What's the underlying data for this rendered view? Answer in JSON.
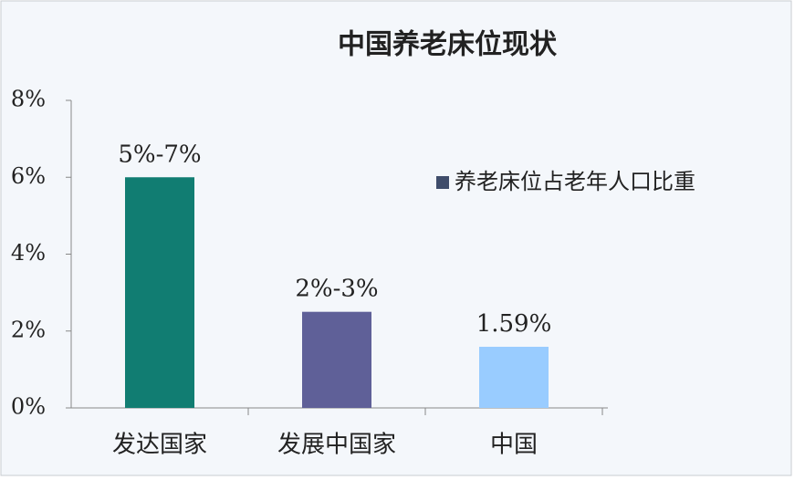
{
  "chart_data": {
    "type": "bar",
    "title": "中国养老床位现状",
    "categories": [
      "发达国家",
      "发展中国家",
      "中国"
    ],
    "series": [
      {
        "name": "养老床位占老年人口比重",
        "color": "#3f4d6b",
        "values": [
          6,
          2.5,
          1.59
        ],
        "value_labels": [
          "5%-7%",
          "2%-3%",
          "1.59%"
        ],
        "bar_colors": [
          "#117d72",
          "#5f6098",
          "#99ccff"
        ]
      }
    ],
    "ylim": [
      0,
      8
    ],
    "yticks": [
      {
        "value": 0,
        "label": "0%"
      },
      {
        "value": 2,
        "label": "2%"
      },
      {
        "value": 4,
        "label": "4%"
      },
      {
        "value": 6,
        "label": "6%"
      },
      {
        "value": 8,
        "label": "8%"
      }
    ],
    "legend": "right"
  }
}
